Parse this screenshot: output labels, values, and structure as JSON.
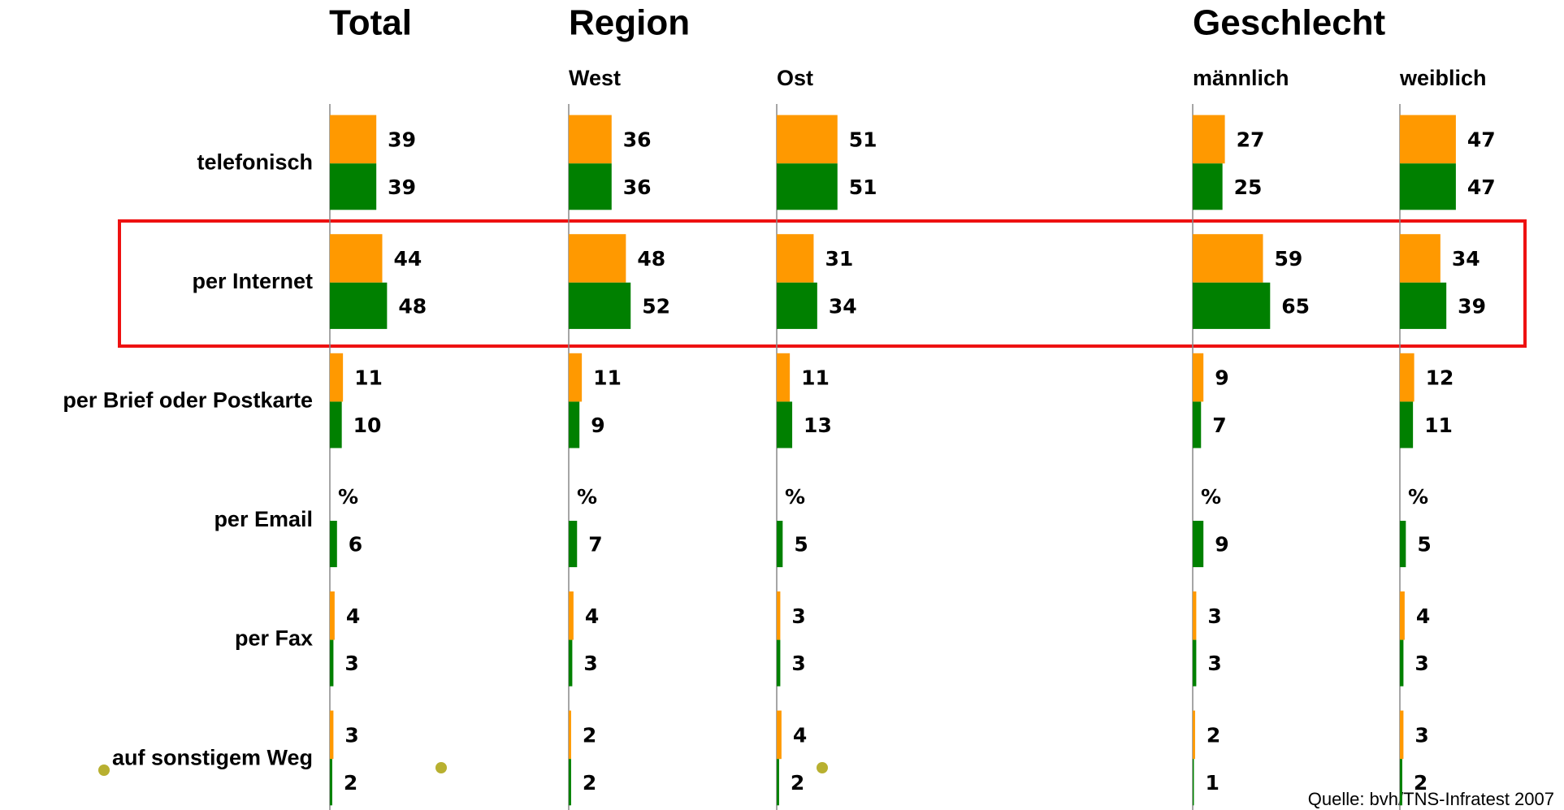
{
  "chart_data": {
    "type": "bar",
    "xlim": [
      0,
      100
    ],
    "source": "Quelle: bvh/TNS-Infratest 2007",
    "categories": [
      "telefonisch",
      "per Internet",
      "per Brief oder Postkarte",
      "per Email",
      "per Fax",
      "auf sonstigem Weg"
    ],
    "groups": [
      {
        "title": "Total",
        "panels": [
          {
            "series": [
              {
                "color": "#ff9900",
                "values": [
                  39,
                  44,
                  11,
                  null,
                  4,
                  3
                ],
                "value_labels": [
                  "39",
                  "44",
                  "11",
                  "%",
                  "4",
                  "3"
                ]
              },
              {
                "color": "#008000",
                "values": [
                  39,
                  48,
                  10,
                  6,
                  3,
                  2
                ]
              }
            ]
          }
        ]
      },
      {
        "title": "Region",
        "panels": [
          {
            "subtitle": "West",
            "series": [
              {
                "color": "#ff9900",
                "values": [
                  36,
                  48,
                  11,
                  null,
                  4,
                  2
                ],
                "value_labels": [
                  "36",
                  "48",
                  "11",
                  "%",
                  "4",
                  "2"
                ]
              },
              {
                "color": "#008000",
                "values": [
                  36,
                  52,
                  9,
                  7,
                  3,
                  2
                ]
              }
            ]
          },
          {
            "subtitle": "Ost",
            "series": [
              {
                "color": "#ff9900",
                "values": [
                  51,
                  31,
                  11,
                  null,
                  3,
                  4
                ],
                "value_labels": [
                  "51",
                  "31",
                  "11",
                  "%",
                  "3",
                  "4"
                ]
              },
              {
                "color": "#008000",
                "values": [
                  51,
                  34,
                  13,
                  5,
                  3,
                  2
                ]
              }
            ]
          }
        ]
      },
      {
        "title": "Geschlecht",
        "panels": [
          {
            "subtitle": "männlich",
            "series": [
              {
                "color": "#ff9900",
                "values": [
                  27,
                  59,
                  9,
                  null,
                  3,
                  2
                ],
                "value_labels": [
                  "27",
                  "59",
                  "9",
                  "%",
                  "3",
                  "2"
                ]
              },
              {
                "color": "#008000",
                "values": [
                  25,
                  65,
                  7,
                  9,
                  3,
                  1
                ]
              }
            ]
          },
          {
            "subtitle": "weiblich",
            "series": [
              {
                "color": "#ff9900",
                "values": [
                  47,
                  34,
                  12,
                  null,
                  4,
                  3
                ],
                "value_labels": [
                  "47",
                  "34",
                  "12",
                  "%",
                  "4",
                  "3"
                ]
              },
              {
                "color": "#008000",
                "values": [
                  47,
                  39,
                  11,
                  5,
                  3,
                  2
                ]
              }
            ]
          }
        ]
      }
    ]
  }
}
